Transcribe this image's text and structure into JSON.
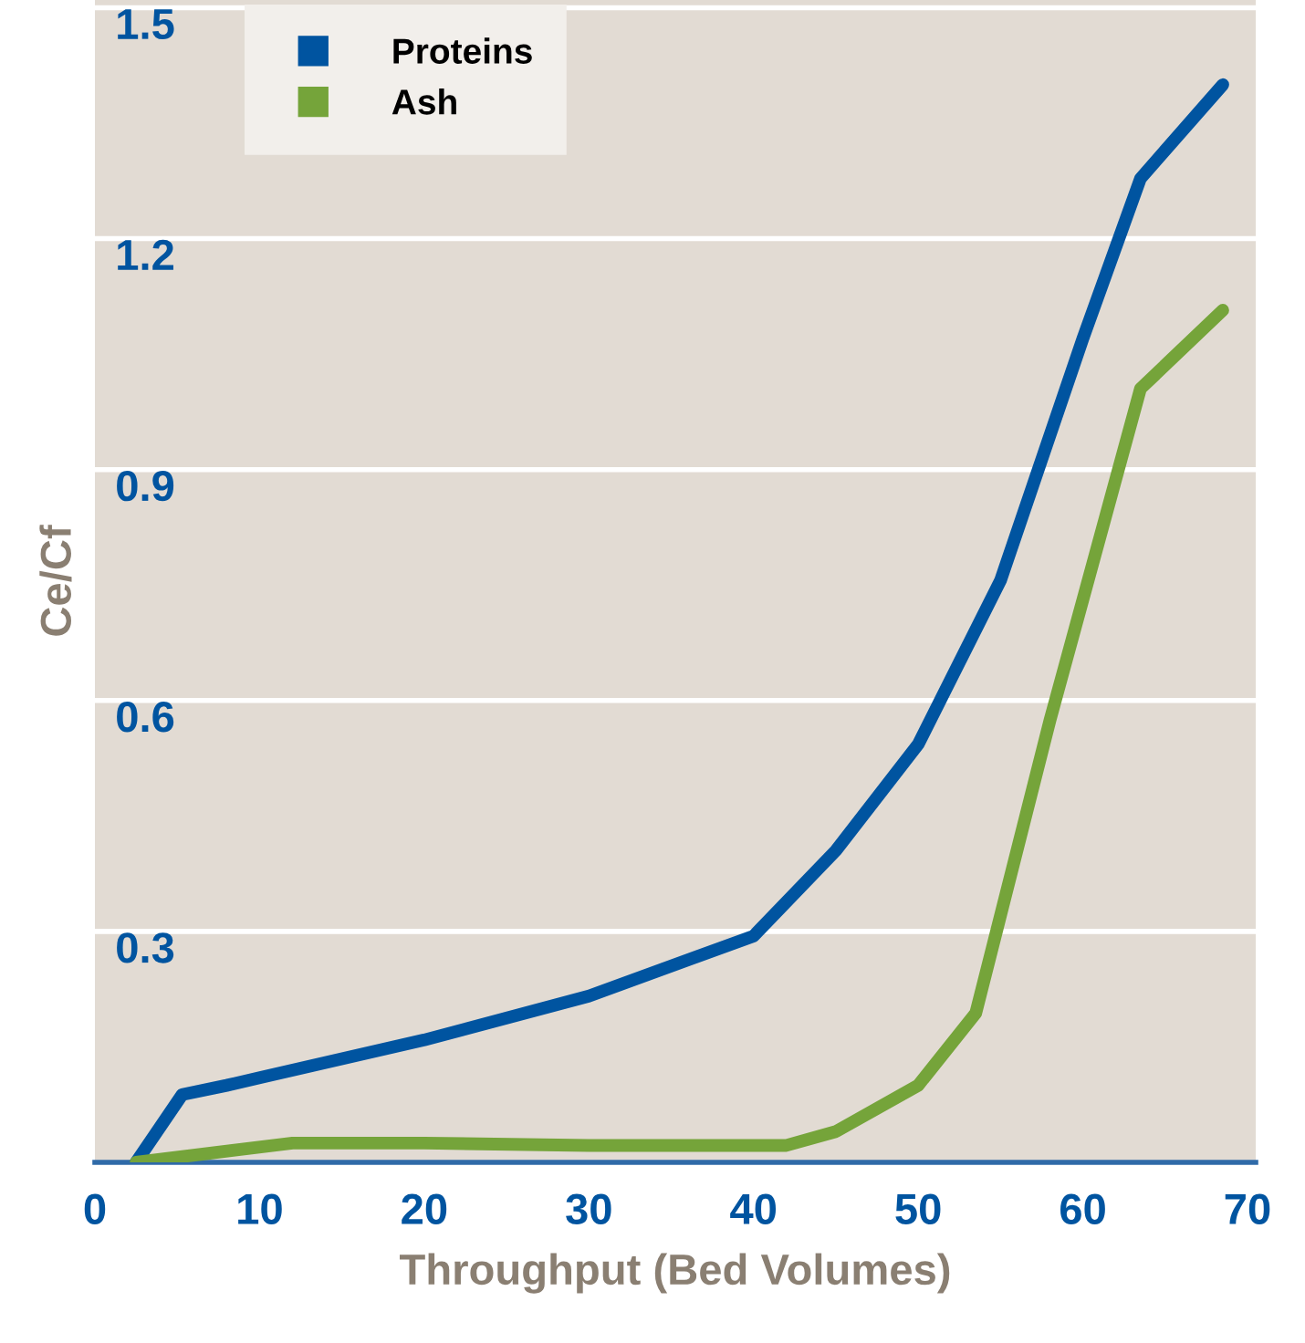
{
  "chart_data": {
    "type": "line",
    "xlabel": "Throughput (Bed Volumes)",
    "ylabel": "Ce/Cf",
    "xlim": [
      0,
      70.5
    ],
    "xticks": [
      0,
      10,
      20,
      30,
      40,
      50,
      60,
      70
    ],
    "ylim": [
      0,
      1.51
    ],
    "yticks": [
      0.3,
      0.6,
      0.9,
      1.2,
      1.5
    ],
    "grid": "y",
    "legend": "top left",
    "marker": "none",
    "line_style": "solid",
    "series": [
      {
        "name": "Proteins",
        "color": "#0054a0",
        "x": [
          2.5,
          5.3,
          8,
          10,
          20,
          30,
          40,
          45,
          50,
          55,
          60,
          63.5,
          68.5
        ],
        "values": [
          0,
          0.088,
          0.1,
          0.11,
          0.159,
          0.216,
          0.294,
          0.405,
          0.543,
          0.756,
          1.07,
          1.278,
          1.4
        ]
      },
      {
        "name": "Ash",
        "color": "#75a43a",
        "x": [
          2.5,
          12,
          20,
          30,
          42,
          45,
          50,
          53.5,
          58,
          63.5,
          68.5
        ],
        "values": [
          0,
          0.025,
          0.025,
          0.022,
          0.022,
          0.04,
          0.1,
          0.194,
          0.574,
          1.005,
          1.107
        ]
      }
    ]
  }
}
